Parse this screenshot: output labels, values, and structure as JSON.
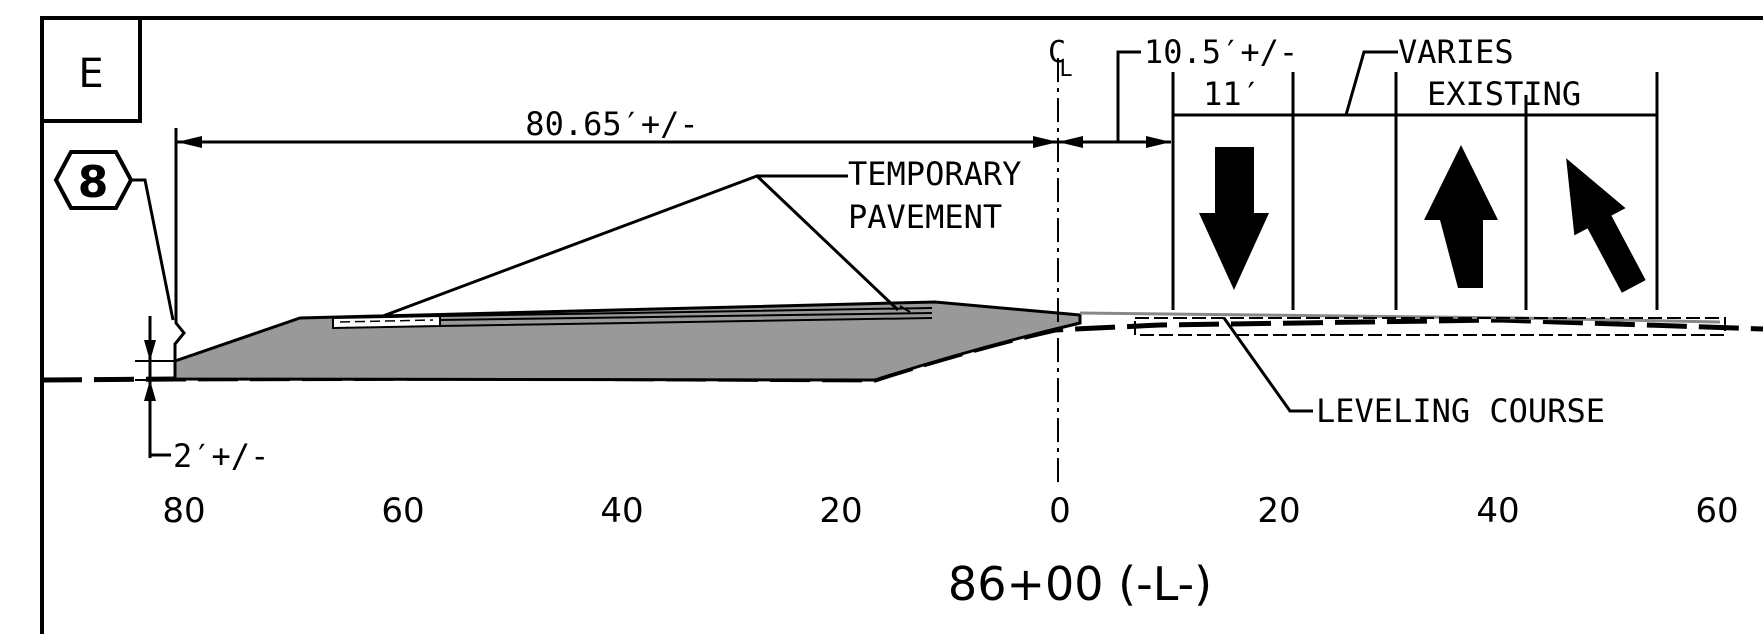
{
  "sheet": {
    "section_letter": "E",
    "note_number": "8",
    "station_label": "86+00 (-L-)"
  },
  "dimensions": {
    "left_width": "80.65′+/-",
    "offset": "10.5′+/-",
    "lane_width": "11′",
    "varies": "VARIES",
    "existing": "EXISTING",
    "depth": "2′+/-"
  },
  "callouts": {
    "temporary_line1": "TEMPORARY",
    "temporary_line2": "PAVEMENT",
    "leveling_course": "LEVELING COURSE",
    "centerline": "C",
    "centerline_sub": "L"
  },
  "axis": {
    "ticks": [
      {
        "label": "80",
        "offset": -80
      },
      {
        "label": "60",
        "offset": -60
      },
      {
        "label": "40",
        "offset": -40
      },
      {
        "label": "20",
        "offset": -20
      },
      {
        "label": "0",
        "offset": 0
      },
      {
        "label": "20",
        "offset": 20
      },
      {
        "label": "40",
        "offset": 40
      },
      {
        "label": "60",
        "offset": 60
      }
    ]
  },
  "lanes": {
    "arrows": [
      "down-arrow",
      "up-arrow",
      "up-left-arrow"
    ]
  },
  "colors": {
    "fill": "#999999",
    "line": "#000000"
  }
}
